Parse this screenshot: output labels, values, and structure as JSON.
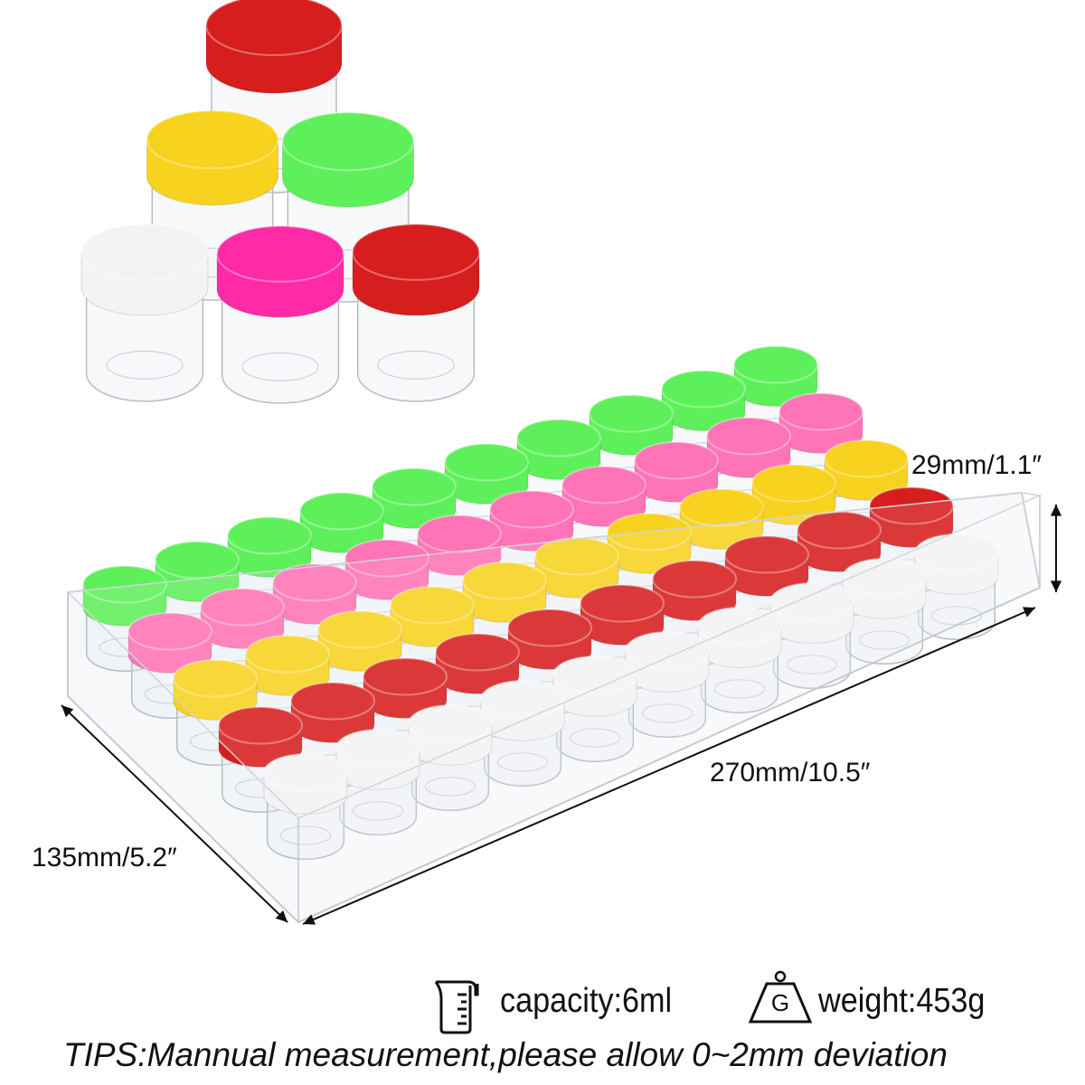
{
  "dimensions": {
    "height": "29mm/1.1″",
    "length": "270mm/10.5″",
    "width": "135mm/5.2″"
  },
  "specs": {
    "capacity": {
      "icon": "measuring-cup-icon",
      "label": "capacity:6ml"
    },
    "weight": {
      "icon": "weight-g-icon",
      "label": "weight:453g",
      "icon_letter": "G"
    }
  },
  "tips": "TIPS:Mannual measurement,please allow 0~2mm deviation",
  "colors": {
    "green": "#5ef05a",
    "pink": "#ff74b6",
    "yellow": "#f7d21f",
    "red": "#d61e1e",
    "white": "#f3f3f3",
    "magenta": "#ff2aa6"
  }
}
